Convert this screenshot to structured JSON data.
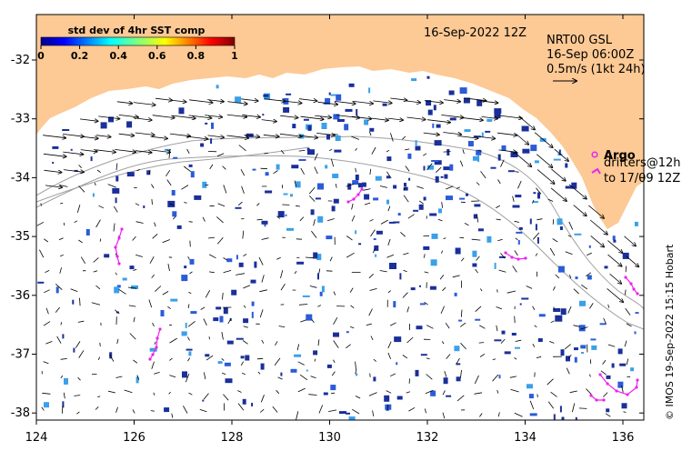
{
  "map": {
    "date_label": "16-Sep-2022 12Z",
    "current_title": "NRT00 GSL",
    "current_time": "16-Sep 06:00Z",
    "current_scale": "0.5m/s (1kt 24h)",
    "argo_label": "Argo",
    "drifters_line1": "drifters@12h",
    "drifters_line2": "to 17/09 12Z",
    "credit": "© IMOS 19-Sep-2022 15:15 Hobart",
    "colorbar": {
      "title": "std dev of 4hr SST comp",
      "ticks": [
        "0",
        "0.2",
        "0.4",
        "0.6",
        "0.8",
        "1"
      ]
    },
    "x_ticks": [
      "124",
      "126",
      "128",
      "130",
      "132",
      "134",
      "136"
    ],
    "y_ticks": [
      "-32",
      "-33",
      "-34",
      "-35",
      "-36",
      "-37",
      "-38"
    ],
    "colors": {
      "land": "#fdc994",
      "drifter": "#ee22ee",
      "obs_dark": "#1a2f9a",
      "obs_mid": "#2a5bd8",
      "obs_light": "#3aa0e8",
      "contour": "#a0a0a0"
    }
  }
}
